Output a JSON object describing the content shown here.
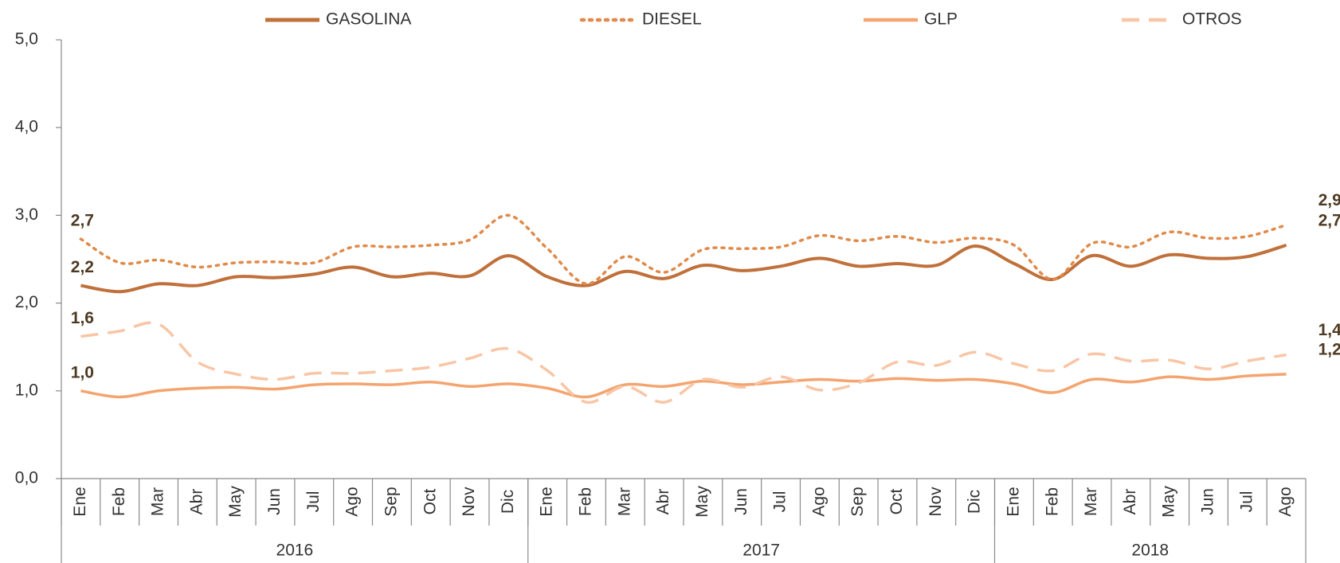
{
  "chart_data": {
    "type": "line",
    "categories": [
      "Ene",
      "Feb",
      "Mar",
      "Abr",
      "May",
      "Jun",
      "Jul",
      "Ago",
      "Sep",
      "Oct",
      "Nov",
      "Dic",
      "Ene",
      "Feb",
      "Mar",
      "Abr",
      "May",
      "Jun",
      "Jul",
      "Ago",
      "Sep",
      "Oct",
      "Nov",
      "Dic",
      "Ene",
      "Feb",
      "Mar",
      "Abr",
      "May",
      "Jun",
      "Jul",
      "Ago"
    ],
    "year_groups": [
      {
        "name": "2016",
        "count": 12
      },
      {
        "name": "2017",
        "count": 12
      },
      {
        "name": "2018",
        "count": 8
      }
    ],
    "ylim": [
      0,
      5
    ],
    "yticks": [
      {
        "value": 0,
        "label": "0,0"
      },
      {
        "value": 1,
        "label": "1,0"
      },
      {
        "value": 2,
        "label": "2,0"
      },
      {
        "value": 3,
        "label": "3,0"
      },
      {
        "value": 4,
        "label": "4,0"
      },
      {
        "value": 5,
        "label": "5,0"
      }
    ],
    "legend": "top",
    "series": [
      {
        "name": "GASOLINA",
        "color": "#c0703a",
        "style": "solid",
        "width": 4,
        "values": [
          2.2,
          2.13,
          2.22,
          2.2,
          2.3,
          2.29,
          2.33,
          2.41,
          2.3,
          2.34,
          2.31,
          2.54,
          2.3,
          2.2,
          2.36,
          2.28,
          2.43,
          2.37,
          2.42,
          2.51,
          2.42,
          2.45,
          2.43,
          2.65,
          2.45,
          2.27,
          2.54,
          2.42,
          2.55,
          2.51,
          2.53,
          2.66
        ],
        "value_labels": [
          "2,2",
          null,
          null,
          null,
          null,
          null,
          null,
          null,
          null,
          null,
          null,
          null,
          null,
          null,
          null,
          null,
          null,
          null,
          null,
          null,
          null,
          null,
          null,
          null,
          null,
          null,
          null,
          null,
          null,
          null,
          null,
          "2,7"
        ]
      },
      {
        "name": "DIESEL",
        "color": "#e08a4a",
        "style": "dotted",
        "width": 3.5,
        "values": [
          2.73,
          2.46,
          2.49,
          2.41,
          2.46,
          2.47,
          2.46,
          2.64,
          2.64,
          2.66,
          2.72,
          3.0,
          2.62,
          2.22,
          2.53,
          2.35,
          2.61,
          2.62,
          2.64,
          2.77,
          2.71,
          2.76,
          2.69,
          2.74,
          2.66,
          2.27,
          2.68,
          2.64,
          2.81,
          2.74,
          2.76,
          2.89
        ],
        "value_labels": [
          "2,7",
          null,
          null,
          null,
          null,
          null,
          null,
          null,
          null,
          null,
          null,
          null,
          null,
          null,
          null,
          null,
          null,
          null,
          null,
          null,
          null,
          null,
          null,
          null,
          null,
          null,
          null,
          null,
          null,
          null,
          null,
          "2,9"
        ]
      },
      {
        "name": "GLP",
        "color": "#f4a46e",
        "style": "solid",
        "width": 3.5,
        "values": [
          1.0,
          0.93,
          1.0,
          1.03,
          1.04,
          1.02,
          1.07,
          1.08,
          1.07,
          1.1,
          1.05,
          1.08,
          1.03,
          0.93,
          1.07,
          1.05,
          1.11,
          1.07,
          1.1,
          1.13,
          1.11,
          1.14,
          1.12,
          1.13,
          1.08,
          0.98,
          1.13,
          1.1,
          1.16,
          1.13,
          1.17,
          1.19
        ],
        "value_labels": [
          "1,0",
          null,
          null,
          null,
          null,
          null,
          null,
          null,
          null,
          null,
          null,
          null,
          null,
          null,
          null,
          null,
          null,
          null,
          null,
          null,
          null,
          null,
          null,
          null,
          null,
          null,
          null,
          null,
          null,
          null,
          null,
          "1,2"
        ]
      },
      {
        "name": "OTROS",
        "color": "#f8c6a6",
        "style": "dashed",
        "width": 3.5,
        "values": [
          1.62,
          1.68,
          1.76,
          1.33,
          1.19,
          1.13,
          1.2,
          1.2,
          1.23,
          1.27,
          1.37,
          1.48,
          1.23,
          0.87,
          1.05,
          0.87,
          1.13,
          1.04,
          1.16,
          1.01,
          1.09,
          1.33,
          1.29,
          1.44,
          1.31,
          1.23,
          1.42,
          1.34,
          1.35,
          1.25,
          1.34,
          1.41
        ],
        "value_labels": [
          "1,6",
          null,
          null,
          null,
          null,
          null,
          null,
          null,
          null,
          null,
          null,
          null,
          null,
          null,
          null,
          null,
          null,
          null,
          null,
          null,
          null,
          null,
          null,
          null,
          null,
          null,
          null,
          null,
          null,
          null,
          null,
          "1,4"
        ]
      }
    ]
  }
}
